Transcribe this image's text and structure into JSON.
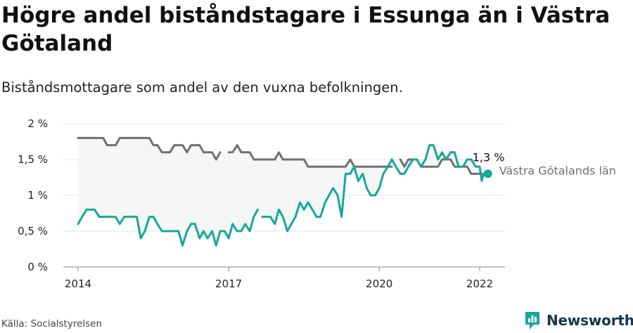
{
  "title": "Högre andel biståndstagare i Essunga än i Västra Götaland",
  "subtitle": "Biståndsmottagare som andel av den vuxna befolkningen.",
  "source": "Källa: Socialstyrelsen",
  "brand": {
    "name": "Newsworthy",
    "icon": "newsworthy-logo-icon"
  },
  "colors": {
    "primary": "#14a89c",
    "secondary": "#707070",
    "area": "#f6f6f6",
    "grid": "#e6e6e6",
    "axis": "#888888"
  },
  "chart_data": {
    "type": "line",
    "x_unit": "year",
    "xlim": [
      2014,
      2022.5
    ],
    "ylim": [
      0,
      2
    ],
    "x_ticks": [
      {
        "value": 2014,
        "label": "2014"
      },
      {
        "value": 2017,
        "label": "2017"
      },
      {
        "value": 2020,
        "label": "2020"
      },
      {
        "value": 2022,
        "label": "2022"
      }
    ],
    "y_ticks": [
      {
        "value": 0,
        "label": "0 %"
      },
      {
        "value": 0.5,
        "label": "0,5 %"
      },
      {
        "value": 1,
        "label": "1 %"
      },
      {
        "value": 1.5,
        "label": "1,5 %"
      },
      {
        "value": 2,
        "label": "2 %"
      }
    ],
    "grid": true,
    "annotation": {
      "text": "1,3 %",
      "x": 2022.08,
      "y": 1.3
    },
    "series": [
      {
        "name": "",
        "color": "#14a89c",
        "width": 3,
        "end_marker": true,
        "segments": [
          [
            [
              2014.0,
              0.6
            ],
            [
              2014.08,
              0.7
            ],
            [
              2014.17,
              0.8
            ],
            [
              2014.25,
              0.8
            ],
            [
              2014.33,
              0.8
            ],
            [
              2014.42,
              0.7
            ],
            [
              2014.5,
              0.7
            ],
            [
              2014.58,
              0.7
            ],
            [
              2014.67,
              0.7
            ],
            [
              2014.75,
              0.7
            ],
            [
              2014.83,
              0.6
            ],
            [
              2014.92,
              0.7
            ],
            [
              2015.0,
              0.7
            ],
            [
              2015.08,
              0.7
            ],
            [
              2015.17,
              0.7
            ],
            [
              2015.25,
              0.4
            ],
            [
              2015.33,
              0.5
            ],
            [
              2015.42,
              0.7
            ],
            [
              2015.5,
              0.7
            ],
            [
              2015.58,
              0.6
            ],
            [
              2015.67,
              0.5
            ],
            [
              2015.75,
              0.5
            ],
            [
              2015.83,
              0.5
            ],
            [
              2015.92,
              0.5
            ],
            [
              2016.0,
              0.5
            ],
            [
              2016.08,
              0.3
            ],
            [
              2016.17,
              0.5
            ],
            [
              2016.25,
              0.6
            ],
            [
              2016.33,
              0.6
            ],
            [
              2016.42,
              0.4
            ],
            [
              2016.5,
              0.5
            ],
            [
              2016.58,
              0.4
            ],
            [
              2016.67,
              0.5
            ],
            [
              2016.75,
              0.3
            ],
            [
              2016.83,
              0.5
            ],
            [
              2016.92,
              0.5
            ],
            [
              2017.0,
              0.4
            ],
            [
              2017.08,
              0.6
            ],
            [
              2017.17,
              0.5
            ],
            [
              2017.25,
              0.5
            ],
            [
              2017.33,
              0.6
            ],
            [
              2017.42,
              0.5
            ],
            [
              2017.5,
              0.7
            ],
            [
              2017.58,
              0.8
            ]
          ],
          [
            [
              2017.67,
              0.7
            ],
            [
              2017.75,
              0.7
            ],
            [
              2017.83,
              0.7
            ],
            [
              2017.92,
              0.6
            ],
            [
              2018.0,
              0.8
            ],
            [
              2018.08,
              0.7
            ],
            [
              2018.17,
              0.5
            ],
            [
              2018.25,
              0.6
            ],
            [
              2018.33,
              0.7
            ],
            [
              2018.42,
              0.9
            ],
            [
              2018.5,
              0.8
            ],
            [
              2018.58,
              0.9
            ],
            [
              2018.67,
              0.8
            ],
            [
              2018.75,
              0.7
            ],
            [
              2018.83,
              0.7
            ],
            [
              2018.92,
              0.9
            ],
            [
              2019.0,
              1.0
            ],
            [
              2019.08,
              1.1
            ],
            [
              2019.17,
              1.0
            ],
            [
              2019.25,
              0.7
            ],
            [
              2019.33,
              1.3
            ],
            [
              2019.42,
              1.3
            ],
            [
              2019.5,
              1.4
            ],
            [
              2019.58,
              1.2
            ],
            [
              2019.67,
              1.3
            ],
            [
              2019.75,
              1.1
            ],
            [
              2019.83,
              1.0
            ],
            [
              2019.92,
              1.0
            ],
            [
              2020.0,
              1.1
            ],
            [
              2020.08,
              1.3
            ],
            [
              2020.17,
              1.4
            ],
            [
              2020.25,
              1.5
            ],
            [
              2020.33,
              1.4
            ],
            [
              2020.42,
              1.3
            ],
            [
              2020.5,
              1.3
            ],
            [
              2020.58,
              1.4
            ],
            [
              2020.67,
              1.5
            ],
            [
              2020.75,
              1.5
            ],
            [
              2020.83,
              1.4
            ],
            [
              2020.92,
              1.5
            ],
            [
              2021.0,
              1.7
            ],
            [
              2021.08,
              1.7
            ],
            [
              2021.17,
              1.5
            ],
            [
              2021.25,
              1.6
            ],
            [
              2021.33,
              1.5
            ],
            [
              2021.42,
              1.6
            ],
            [
              2021.5,
              1.6
            ],
            [
              2021.58,
              1.4
            ],
            [
              2021.67,
              1.4
            ],
            [
              2021.75,
              1.5
            ],
            [
              2021.83,
              1.5
            ],
            [
              2021.92,
              1.4
            ],
            [
              2022.0,
              1.4
            ],
            [
              2022.04,
              1.2
            ],
            [
              2022.08,
              1.3
            ]
          ]
        ]
      },
      {
        "name": "Västra Götalands län",
        "color": "#707070",
        "width": 3,
        "segments": [
          [
            [
              2014.0,
              1.8
            ],
            [
              2014.08,
              1.8
            ],
            [
              2014.17,
              1.8
            ],
            [
              2014.25,
              1.8
            ],
            [
              2014.33,
              1.8
            ],
            [
              2014.42,
              1.8
            ],
            [
              2014.5,
              1.8
            ],
            [
              2014.58,
              1.7
            ],
            [
              2014.67,
              1.7
            ],
            [
              2014.75,
              1.7
            ],
            [
              2014.83,
              1.8
            ],
            [
              2014.92,
              1.8
            ],
            [
              2015.0,
              1.8
            ],
            [
              2015.08,
              1.8
            ],
            [
              2015.17,
              1.8
            ],
            [
              2015.25,
              1.8
            ],
            [
              2015.33,
              1.8
            ],
            [
              2015.42,
              1.8
            ],
            [
              2015.5,
              1.7
            ],
            [
              2015.58,
              1.7
            ],
            [
              2015.67,
              1.6
            ],
            [
              2015.75,
              1.6
            ],
            [
              2015.83,
              1.6
            ],
            [
              2015.92,
              1.7
            ],
            [
              2016.0,
              1.7
            ],
            [
              2016.08,
              1.7
            ],
            [
              2016.17,
              1.6
            ],
            [
              2016.25,
              1.7
            ],
            [
              2016.33,
              1.7
            ],
            [
              2016.42,
              1.7
            ],
            [
              2016.5,
              1.6
            ],
            [
              2016.58,
              1.6
            ],
            [
              2016.67,
              1.6
            ],
            [
              2016.75,
              1.5
            ],
            [
              2016.83,
              1.6
            ]
          ],
          [
            [
              2017.0,
              1.6
            ],
            [
              2017.08,
              1.6
            ],
            [
              2017.17,
              1.7
            ],
            [
              2017.25,
              1.6
            ],
            [
              2017.33,
              1.6
            ],
            [
              2017.42,
              1.6
            ],
            [
              2017.5,
              1.5
            ],
            [
              2017.58,
              1.5
            ],
            [
              2017.67,
              1.5
            ],
            [
              2017.75,
              1.5
            ],
            [
              2017.83,
              1.5
            ],
            [
              2017.92,
              1.5
            ],
            [
              2018.0,
              1.6
            ],
            [
              2018.08,
              1.5
            ],
            [
              2018.17,
              1.5
            ],
            [
              2018.25,
              1.5
            ],
            [
              2018.33,
              1.5
            ],
            [
              2018.42,
              1.5
            ],
            [
              2018.5,
              1.5
            ],
            [
              2018.58,
              1.4
            ],
            [
              2018.67,
              1.4
            ],
            [
              2018.75,
              1.4
            ],
            [
              2018.83,
              1.4
            ],
            [
              2018.92,
              1.4
            ],
            [
              2019.0,
              1.4
            ],
            [
              2019.08,
              1.4
            ],
            [
              2019.17,
              1.4
            ],
            [
              2019.25,
              1.4
            ],
            [
              2019.33,
              1.4
            ],
            [
              2019.42,
              1.5
            ],
            [
              2019.5,
              1.4
            ],
            [
              2019.58,
              1.4
            ],
            [
              2019.67,
              1.4
            ],
            [
              2019.75,
              1.4
            ],
            [
              2019.83,
              1.4
            ],
            [
              2019.92,
              1.4
            ],
            [
              2020.0,
              1.4
            ],
            [
              2020.08,
              1.4
            ],
            [
              2020.17,
              1.4
            ],
            [
              2020.25,
              1.4
            ]
          ],
          [
            [
              2020.42,
              1.5
            ],
            [
              2020.5,
              1.4
            ],
            [
              2020.58,
              1.5
            ],
            [
              2020.67,
              1.5
            ],
            [
              2020.75,
              1.5
            ],
            [
              2020.83,
              1.4
            ],
            [
              2020.92,
              1.4
            ],
            [
              2021.0,
              1.4
            ],
            [
              2021.08,
              1.4
            ],
            [
              2021.17,
              1.4
            ],
            [
              2021.25,
              1.5
            ],
            [
              2021.33,
              1.5
            ],
            [
              2021.42,
              1.5
            ],
            [
              2021.5,
              1.4
            ],
            [
              2021.58,
              1.4
            ],
            [
              2021.67,
              1.4
            ],
            [
              2021.75,
              1.4
            ],
            [
              2021.83,
              1.3
            ],
            [
              2021.92,
              1.3
            ],
            [
              2022.0,
              1.3
            ],
            [
              2022.08,
              1.3
            ]
          ]
        ]
      }
    ]
  }
}
